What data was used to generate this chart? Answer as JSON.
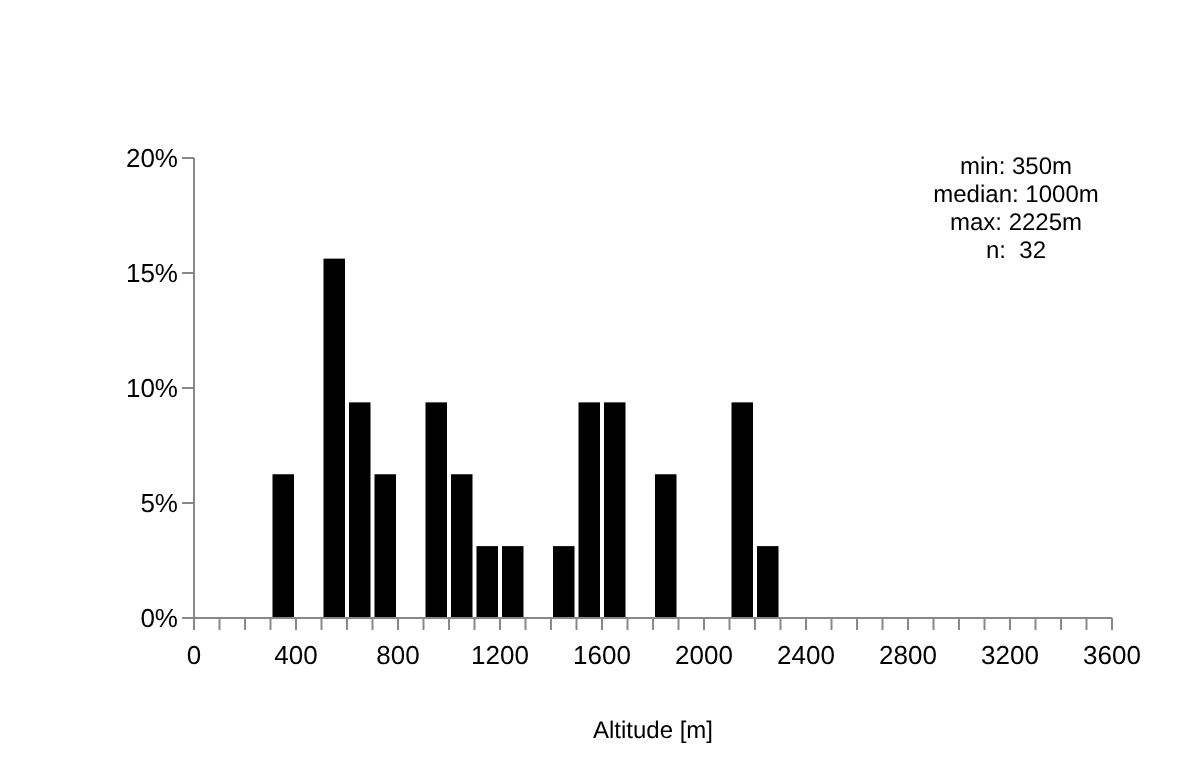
{
  "chart_data": {
    "type": "histogram",
    "xlabel": "Altitude [m]",
    "bins": [
      300,
      400,
      500,
      600,
      700,
      800,
      900,
      1000,
      1100,
      1200,
      1300,
      1400,
      1500,
      1600,
      1700,
      1800,
      1900,
      2000,
      2100,
      2200,
      2300
    ],
    "values": [
      6.25,
      0,
      15.625,
      9.375,
      6.25,
      0,
      9.375,
      6.25,
      3.125,
      3.125,
      0,
      3.125,
      9.375,
      9.375,
      0,
      6.25,
      0,
      0,
      9.375,
      3.125
    ],
    "color": "#000000",
    "xlim": [
      0,
      3600
    ],
    "xticks": [
      0,
      {
        "value": 100,
        "label": null
      },
      {
        "value": 200,
        "label": null
      },
      {
        "value": 300,
        "label": null
      },
      400,
      {
        "value": 500,
        "label": null
      },
      {
        "value": 600,
        "label": null
      },
      {
        "value": 700,
        "label": null
      },
      800,
      {
        "value": 900,
        "label": null
      },
      {
        "value": 1000,
        "label": null
      },
      {
        "value": 1100,
        "label": null
      },
      1200,
      {
        "value": 1300,
        "label": null
      },
      {
        "value": 1400,
        "label": null
      },
      {
        "value": 1500,
        "label": null
      },
      1600,
      {
        "value": 1700,
        "label": null
      },
      {
        "value": 1800,
        "label": null
      },
      {
        "value": 1900,
        "label": null
      },
      2000,
      {
        "value": 2100,
        "label": null
      },
      {
        "value": 2200,
        "label": null
      },
      {
        "value": 2300,
        "label": null
      },
      2400,
      {
        "value": 2500,
        "label": null
      },
      {
        "value": 2600,
        "label": null
      },
      {
        "value": 2700,
        "label": null
      },
      2800,
      {
        "value": 2900,
        "label": null
      },
      {
        "value": 3000,
        "label": null
      },
      {
        "value": 3100,
        "label": null
      },
      3200,
      {
        "value": 3300,
        "label": null
      },
      {
        "value": 3400,
        "label": null
      },
      {
        "value": 3500,
        "label": null
      },
      3600
    ],
    "ylim": [
      0,
      20
    ],
    "yticks": [
      {
        "value": 0,
        "label": "0%"
      },
      {
        "value": 5,
        "label": "5%"
      },
      {
        "value": 10,
        "label": "10%"
      },
      {
        "value": 15,
        "label": "15%"
      },
      {
        "value": 20,
        "label": "20%"
      }
    ],
    "grid": false,
    "legend": false,
    "annotations": [
      "min: 350m",
      "median: 1000m",
      "max: 2225m",
      "n:  32"
    ]
  }
}
